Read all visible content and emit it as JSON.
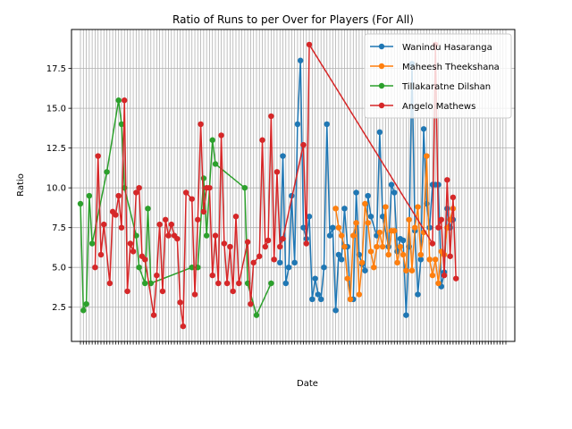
{
  "chart_data": {
    "type": "line",
    "title": "Ratio of Runs to per Over for Players (For All)",
    "xlabel": "Date",
    "ylabel": "Ratio",
    "ylim": [
      0.35,
      19.95
    ],
    "yticks": [
      2.5,
      5.0,
      7.5,
      10.0,
      12.5,
      15.0,
      17.5
    ],
    "ytick_labels": [
      "2.5",
      "5.0",
      "7.5",
      "10.0",
      "12.5",
      "15.0",
      "17.5"
    ],
    "grid": true,
    "legend_position": "upper right",
    "x_category_count": 146,
    "series": [
      {
        "name": "Wanindu Hasaranga",
        "color": "#1f77b4",
        "points": [
          [
            69,
            5.3
          ],
          [
            70,
            12.0
          ],
          [
            71,
            4.0
          ],
          [
            72,
            5.0
          ],
          [
            73,
            9.5
          ],
          [
            74,
            5.3
          ],
          [
            75,
            14.0
          ],
          [
            76,
            18.0
          ],
          [
            77,
            7.5
          ],
          [
            78,
            6.8
          ],
          [
            79,
            8.2
          ],
          [
            80,
            3.0
          ],
          [
            81,
            4.3
          ],
          [
            82,
            3.3
          ],
          [
            83,
            3.0
          ],
          [
            84,
            5.0
          ],
          [
            85,
            14.0
          ],
          [
            86,
            7.0
          ],
          [
            87,
            7.5
          ],
          [
            88,
            2.3
          ],
          [
            89,
            5.8
          ],
          [
            90,
            5.5
          ],
          [
            91,
            8.7
          ],
          [
            92,
            6.3
          ],
          [
            93,
            3.0
          ],
          [
            94,
            3.0
          ],
          [
            95,
            9.7
          ],
          [
            96,
            5.8
          ],
          [
            97,
            5.2
          ],
          [
            98,
            4.8
          ],
          [
            99,
            9.5
          ],
          [
            100,
            8.2
          ],
          [
            102,
            7.0
          ],
          [
            103,
            13.5
          ],
          [
            104,
            8.2
          ],
          [
            106,
            6.3
          ],
          [
            107,
            10.2
          ],
          [
            108,
            9.7
          ],
          [
            109,
            6.0
          ],
          [
            110,
            6.8
          ],
          [
            111,
            6.7
          ],
          [
            112,
            2.0
          ],
          [
            113,
            6.3
          ],
          [
            114,
            17.8
          ],
          [
            115,
            7.3
          ],
          [
            116,
            3.3
          ],
          [
            117,
            5.5
          ],
          [
            118,
            13.7
          ],
          [
            119,
            9.0
          ],
          [
            120,
            7.5
          ],
          [
            121,
            10.2
          ],
          [
            122,
            10.2
          ],
          [
            123,
            10.2
          ],
          [
            124,
            3.8
          ],
          [
            125,
            4.7
          ],
          [
            126,
            8.7
          ],
          [
            127,
            7.5
          ],
          [
            128,
            8.0
          ]
        ]
      },
      {
        "name": "Maheesh Theekshana",
        "color": "#ff7f0e",
        "points": [
          [
            88,
            8.7
          ],
          [
            89,
            7.5
          ],
          [
            90,
            7.0
          ],
          [
            91,
            6.3
          ],
          [
            92,
            4.3
          ],
          [
            93,
            3.0
          ],
          [
            94,
            7.0
          ],
          [
            95,
            7.8
          ],
          [
            96,
            3.3
          ],
          [
            97,
            5.3
          ],
          [
            98,
            9.0
          ],
          [
            99,
            7.8
          ],
          [
            100,
            6.0
          ],
          [
            101,
            5.0
          ],
          [
            102,
            6.3
          ],
          [
            103,
            7.2
          ],
          [
            104,
            6.3
          ],
          [
            105,
            8.8
          ],
          [
            106,
            5.8
          ],
          [
            107,
            7.3
          ],
          [
            108,
            7.3
          ],
          [
            109,
            5.3
          ],
          [
            110,
            6.3
          ],
          [
            111,
            5.8
          ],
          [
            112,
            4.8
          ],
          [
            113,
            8.0
          ],
          [
            114,
            4.8
          ],
          [
            115,
            7.5
          ],
          [
            116,
            8.8
          ],
          [
            117,
            5.8
          ],
          [
            118,
            7.2
          ],
          [
            119,
            12.0
          ],
          [
            120,
            5.5
          ],
          [
            121,
            4.5
          ],
          [
            122,
            5.5
          ],
          [
            123,
            4.0
          ],
          [
            124,
            6.0
          ],
          [
            125,
            5.8
          ],
          [
            126,
            7.5
          ],
          [
            127,
            8.0
          ],
          [
            128,
            8.7
          ]
        ]
      },
      {
        "name": "Tillakaratne Dilshan",
        "color": "#2ca02c",
        "points": [
          [
            1,
            9.0
          ],
          [
            2,
            2.3
          ],
          [
            3,
            2.7
          ],
          [
            4,
            9.5
          ],
          [
            5,
            6.5
          ],
          [
            10,
            11.0
          ],
          [
            14,
            15.5
          ],
          [
            15,
            14.0
          ],
          [
            16,
            10.0
          ],
          [
            20,
            7.0
          ],
          [
            21,
            5.0
          ],
          [
            23,
            4.0
          ],
          [
            24,
            8.7
          ],
          [
            25,
            4.0
          ],
          [
            39,
            5.0
          ],
          [
            41,
            5.0
          ],
          [
            43,
            10.6
          ],
          [
            44,
            7.0
          ],
          [
            46,
            13.0
          ],
          [
            47,
            11.5
          ],
          [
            57,
            10.0
          ],
          [
            58,
            4.0
          ],
          [
            61,
            2.0
          ],
          [
            66,
            4.0
          ]
        ]
      },
      {
        "name": "Angelo Mathews",
        "color": "#d62728",
        "points": [
          [
            6,
            5.0
          ],
          [
            7,
            12.0
          ],
          [
            8,
            5.8
          ],
          [
            9,
            7.7
          ],
          [
            11,
            4.0
          ],
          [
            12,
            8.5
          ],
          [
            13,
            8.3
          ],
          [
            14,
            9.5
          ],
          [
            15,
            7.5
          ],
          [
            16,
            15.5
          ],
          [
            17,
            3.5
          ],
          [
            18,
            6.5
          ],
          [
            19,
            6.0
          ],
          [
            20,
            9.7
          ],
          [
            21,
            10.0
          ],
          [
            22,
            5.7
          ],
          [
            23,
            5.5
          ],
          [
            26,
            2.0
          ],
          [
            27,
            4.5
          ],
          [
            28,
            7.7
          ],
          [
            29,
            3.5
          ],
          [
            30,
            8.0
          ],
          [
            31,
            7.0
          ],
          [
            32,
            7.7
          ],
          [
            33,
            7.0
          ],
          [
            34,
            6.8
          ],
          [
            35,
            2.8
          ],
          [
            36,
            1.3
          ],
          [
            37,
            9.7
          ],
          [
            39,
            9.3
          ],
          [
            40,
            3.3
          ],
          [
            41,
            8.0
          ],
          [
            42,
            14.0
          ],
          [
            43,
            8.5
          ],
          [
            44,
            10.0
          ],
          [
            45,
            10.0
          ],
          [
            46,
            4.5
          ],
          [
            47,
            7.0
          ],
          [
            48,
            4.0
          ],
          [
            49,
            13.3
          ],
          [
            50,
            6.5
          ],
          [
            51,
            4.0
          ],
          [
            52,
            6.3
          ],
          [
            53,
            3.5
          ],
          [
            54,
            8.2
          ],
          [
            55,
            4.0
          ],
          [
            58,
            6.6
          ],
          [
            59,
            2.7
          ],
          [
            60,
            5.3
          ],
          [
            62,
            5.7
          ],
          [
            63,
            13.0
          ],
          [
            64,
            6.3
          ],
          [
            65,
            6.7
          ],
          [
            66,
            14.5
          ],
          [
            67,
            5.5
          ],
          [
            68,
            11.0
          ],
          [
            69,
            6.3
          ],
          [
            70,
            6.8
          ],
          [
            77,
            12.7
          ],
          [
            78,
            6.5
          ],
          [
            79,
            19.0
          ],
          [
            121,
            6.5
          ],
          [
            122,
            19.0
          ],
          [
            123,
            7.5
          ],
          [
            124,
            8.0
          ],
          [
            125,
            4.5
          ],
          [
            126,
            10.5
          ],
          [
            127,
            5.7
          ],
          [
            128,
            9.4
          ],
          [
            129,
            4.3
          ]
        ]
      }
    ]
  }
}
